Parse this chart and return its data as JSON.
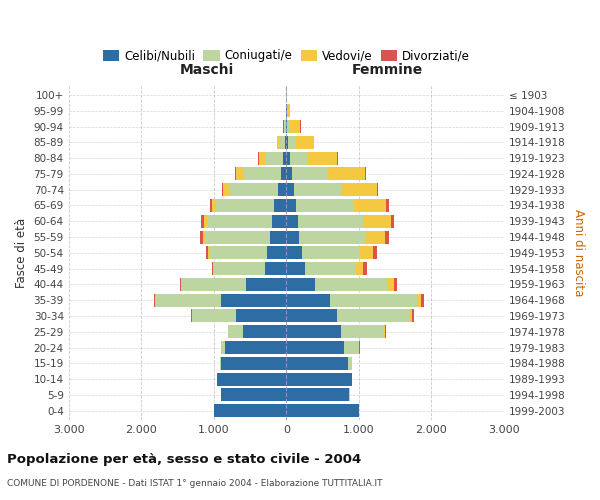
{
  "age_groups_bottom_to_top": [
    "0-4",
    "5-9",
    "10-14",
    "15-19",
    "20-24",
    "25-29",
    "30-34",
    "35-39",
    "40-44",
    "45-49",
    "50-54",
    "55-59",
    "60-64",
    "65-69",
    "70-74",
    "75-79",
    "80-84",
    "85-89",
    "90-94",
    "95-99",
    "100+"
  ],
  "birth_years_bottom_to_top": [
    "1999-2003",
    "1994-1998",
    "1989-1993",
    "1984-1988",
    "1979-1983",
    "1974-1978",
    "1969-1973",
    "1964-1968",
    "1959-1963",
    "1954-1958",
    "1949-1953",
    "1944-1948",
    "1939-1943",
    "1934-1938",
    "1929-1933",
    "1924-1928",
    "1919-1923",
    "1914-1918",
    "1909-1913",
    "1904-1908",
    "≤ 1903"
  ],
  "m_celibi": [
    1000,
    900,
    950,
    900,
    850,
    600,
    700,
    900,
    550,
    300,
    260,
    220,
    200,
    170,
    120,
    80,
    50,
    20,
    8,
    3,
    2
  ],
  "m_coniugati": [
    1,
    2,
    5,
    10,
    50,
    200,
    600,
    900,
    900,
    700,
    800,
    900,
    900,
    800,
    650,
    500,
    250,
    80,
    20,
    5,
    1
  ],
  "m_vedovi": [
    0,
    0,
    0,
    0,
    1,
    2,
    3,
    5,
    5,
    10,
    20,
    30,
    40,
    60,
    100,
    120,
    80,
    30,
    10,
    2,
    0
  ],
  "m_divorziati": [
    0,
    0,
    0,
    1,
    2,
    5,
    10,
    15,
    10,
    20,
    30,
    40,
    30,
    20,
    15,
    10,
    5,
    2,
    1,
    0,
    0
  ],
  "f_nubili": [
    1000,
    870,
    900,
    850,
    800,
    750,
    700,
    600,
    400,
    260,
    210,
    180,
    160,
    130,
    100,
    80,
    50,
    30,
    15,
    5,
    2
  ],
  "f_coniugate": [
    2,
    5,
    10,
    50,
    200,
    600,
    1000,
    1200,
    1000,
    700,
    800,
    900,
    900,
    800,
    650,
    500,
    250,
    100,
    30,
    8,
    1
  ],
  "f_vedove": [
    0,
    0,
    1,
    2,
    5,
    15,
    30,
    50,
    80,
    100,
    180,
    280,
    380,
    450,
    500,
    500,
    400,
    250,
    150,
    40,
    5
  ],
  "f_divorziate": [
    0,
    0,
    0,
    2,
    5,
    10,
    30,
    50,
    40,
    50,
    60,
    60,
    50,
    30,
    20,
    15,
    10,
    5,
    2,
    1,
    0
  ],
  "colors": {
    "celibi": "#2e6da4",
    "coniugati": "#bdd5a0",
    "vedovi": "#f5c842",
    "divorziati": "#d9534f"
  },
  "xlim": 3000,
  "title": "Popolazione per età, sesso e stato civile - 2004",
  "subtitle": "COMUNE DI PORDENONE - Dati ISTAT 1° gennaio 2004 - Elaborazione TUTTITALIA.IT",
  "ylabel_left": "Fasce di età",
  "ylabel_right": "Anni di nascita",
  "label_maschi": "Maschi",
  "label_femmine": "Femmine",
  "legend_labels": [
    "Celibi/Nubili",
    "Coniugati/e",
    "Vedovi/e",
    "Divorziati/e"
  ],
  "xtick_labels": [
    "3.000",
    "2.000",
    "1.000",
    "0",
    "1.000",
    "2.000",
    "3.000"
  ],
  "xticks": [
    -3000,
    -2000,
    -1000,
    0,
    1000,
    2000,
    3000
  ],
  "background_color": "#ffffff",
  "grid_color": "#bbbbbb"
}
